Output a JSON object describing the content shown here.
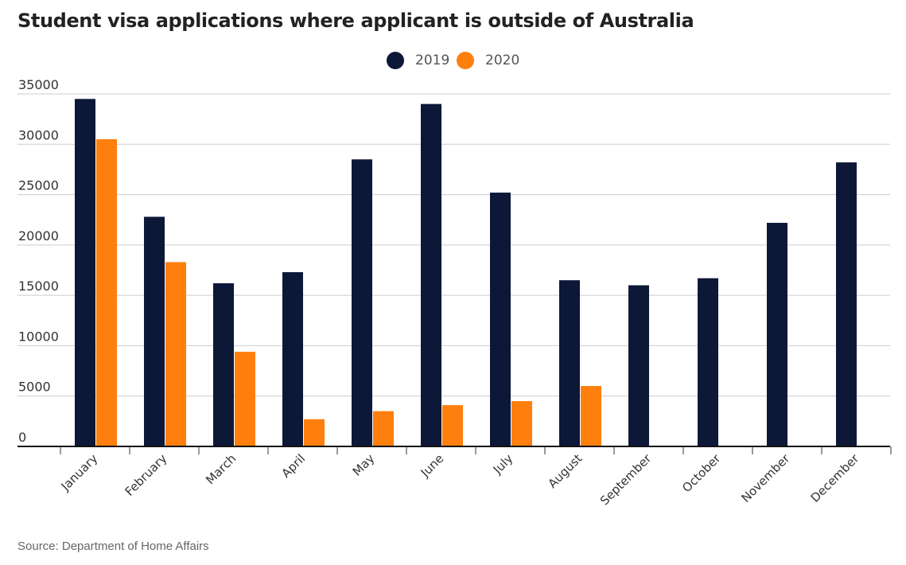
{
  "chart_data": {
    "type": "bar",
    "title": "Student visa applications where applicant is outside of Australia",
    "categories": [
      "January",
      "February",
      "March",
      "April",
      "May",
      "June",
      "July",
      "August",
      "September",
      "October",
      "November",
      "December"
    ],
    "series": [
      {
        "name": "2019",
        "color": "#0d1838",
        "values": [
          34500,
          22800,
          16200,
          17300,
          28500,
          34000,
          25200,
          16500,
          16000,
          16700,
          22200,
          28200
        ]
      },
      {
        "name": "2020",
        "color": "#ff7f0e",
        "values": [
          30500,
          18300,
          9400,
          2700,
          3500,
          4100,
          4500,
          6000,
          null,
          null,
          null,
          null
        ]
      }
    ],
    "yticks": [
      0,
      5000,
      10000,
      15000,
      20000,
      25000,
      30000,
      35000
    ],
    "ylim": [
      0,
      35000
    ],
    "grid": true,
    "legend_position": "top-center",
    "source": "Source: Department of Home Affairs"
  }
}
